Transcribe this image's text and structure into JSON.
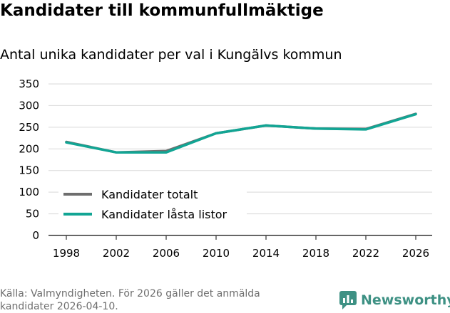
{
  "header": {
    "title": "Kandidater till kommunfullmäktige",
    "subtitle": "Antal unika kandidater per val i Kungälvs kommun"
  },
  "footer": {
    "source_line1": "Källa: Valmyndigheten. För 2026 gäller det anmälda",
    "source_line2": "kandidater 2026-04-10.",
    "brand": "Newsworthy",
    "brand_color": "#3e9184"
  },
  "chart_data": {
    "type": "line",
    "title": "Kandidater till kommunfullmäktige",
    "subtitle": "Antal unika kandidater per val i Kungälvs kommun",
    "xlabel": "",
    "ylabel": "",
    "x": [
      "1998",
      "2002",
      "2006",
      "2010",
      "2014",
      "2018",
      "2022",
      "2026"
    ],
    "yticks": [
      0,
      50,
      100,
      150,
      200,
      250,
      300,
      350
    ],
    "ylim": [
      0,
      350
    ],
    "grid": true,
    "legend_position": "bottom-left",
    "series": [
      {
        "name": "Kandidater totalt",
        "color": "#6e6e6e",
        "values": [
          216,
          192,
          195,
          236,
          254,
          247,
          246,
          281
        ]
      },
      {
        "name": "Kandidater låsta listor",
        "color": "#12a594",
        "values": [
          215,
          192,
          192,
          236,
          254,
          247,
          245,
          280
        ]
      }
    ]
  }
}
